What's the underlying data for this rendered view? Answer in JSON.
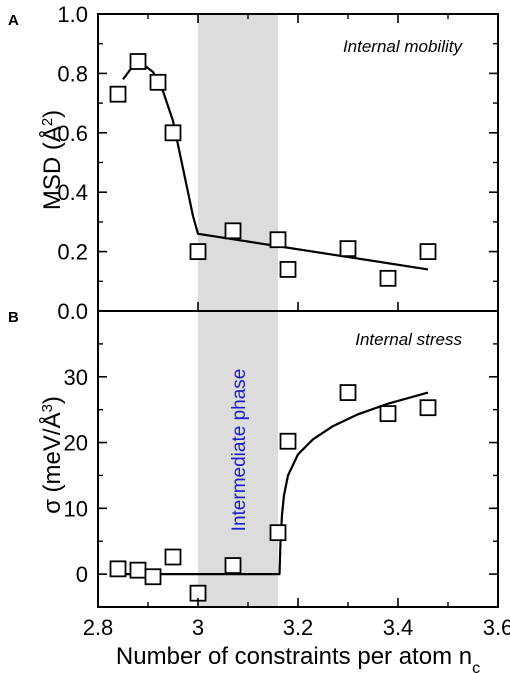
{
  "chart_data": [
    {
      "panel": "A",
      "type": "scatter",
      "annotation": "Internal mobility",
      "ylabel_main": "MSD (Å",
      "ylabel_sup": "2",
      "ylabel_tail": ")",
      "xlim": [
        2.8,
        3.6
      ],
      "ylim": [
        0.0,
        1.0
      ],
      "yticks": [
        "0.0",
        "0.2",
        "0.4",
        "0.6",
        "0.8",
        "1.0"
      ],
      "points": [
        {
          "x": 2.84,
          "y": 0.73
        },
        {
          "x": 2.88,
          "y": 0.84
        },
        {
          "x": 2.92,
          "y": 0.77
        },
        {
          "x": 2.95,
          "y": 0.6
        },
        {
          "x": 3.0,
          "y": 0.2
        },
        {
          "x": 3.07,
          "y": 0.27
        },
        {
          "x": 3.16,
          "y": 0.24
        },
        {
          "x": 3.18,
          "y": 0.14
        },
        {
          "x": 3.3,
          "y": 0.21
        },
        {
          "x": 3.38,
          "y": 0.11
        },
        {
          "x": 3.46,
          "y": 0.2
        }
      ],
      "fit_curve": [
        {
          "x": 2.85,
          "y": 0.78
        },
        {
          "x": 2.87,
          "y": 0.825
        },
        {
          "x": 2.89,
          "y": 0.83
        },
        {
          "x": 2.91,
          "y": 0.805
        },
        {
          "x": 2.93,
          "y": 0.74
        },
        {
          "x": 2.95,
          "y": 0.64
        },
        {
          "x": 2.965,
          "y": 0.52
        },
        {
          "x": 2.98,
          "y": 0.4
        },
        {
          "x": 2.99,
          "y": 0.32
        },
        {
          "x": 3.0,
          "y": 0.26
        },
        {
          "x": 3.46,
          "y": 0.14
        }
      ]
    },
    {
      "panel": "B",
      "type": "scatter",
      "annotation": "Internal stress",
      "ylabel_main": "σ (meV/Å",
      "ylabel_sup": "3",
      "ylabel_tail": ")",
      "xlim": [
        2.8,
        3.6
      ],
      "ylim": [
        -5,
        40
      ],
      "yticks": [
        "0",
        "10",
        "20",
        "30"
      ],
      "ytick_values": [
        0,
        10,
        20,
        30
      ],
      "points": [
        {
          "x": 2.84,
          "y": 0.8
        },
        {
          "x": 2.88,
          "y": 0.6
        },
        {
          "x": 2.91,
          "y": -0.4
        },
        {
          "x": 2.95,
          "y": 2.6
        },
        {
          "x": 3.0,
          "y": -2.9
        },
        {
          "x": 3.07,
          "y": 1.3
        },
        {
          "x": 3.16,
          "y": 6.3
        },
        {
          "x": 3.18,
          "y": 20.2
        },
        {
          "x": 3.3,
          "y": 27.6
        },
        {
          "x": 3.38,
          "y": 24.4
        },
        {
          "x": 3.46,
          "y": 25.3
        }
      ],
      "fit_curve": [
        {
          "x": 2.84,
          "y": 0
        },
        {
          "x": 3.163,
          "y": 0
        },
        {
          "x": 3.165,
          "y": 5.0
        },
        {
          "x": 3.168,
          "y": 9.0
        },
        {
          "x": 3.172,
          "y": 12.0
        },
        {
          "x": 3.18,
          "y": 15.0
        },
        {
          "x": 3.2,
          "y": 18.2
        },
        {
          "x": 3.23,
          "y": 20.5
        },
        {
          "x": 3.27,
          "y": 22.5
        },
        {
          "x": 3.32,
          "y": 24.3
        },
        {
          "x": 3.38,
          "y": 25.9
        },
        {
          "x": 3.46,
          "y": 27.6
        }
      ]
    }
  ],
  "shared": {
    "xlabel": "Number of constraints per atom n",
    "xlabel_sub": "c",
    "xticks": [
      "2.8",
      "3",
      "3.2",
      "3.4",
      "3.6"
    ],
    "xtick_values": [
      2.8,
      3.0,
      3.2,
      3.4,
      3.6
    ],
    "shaded_region": {
      "x_from": 3.0,
      "x_to": 3.16,
      "label": "Intermediate phase",
      "color": "#dcdcdc"
    },
    "phase_label_color": "#1c1cc8"
  }
}
